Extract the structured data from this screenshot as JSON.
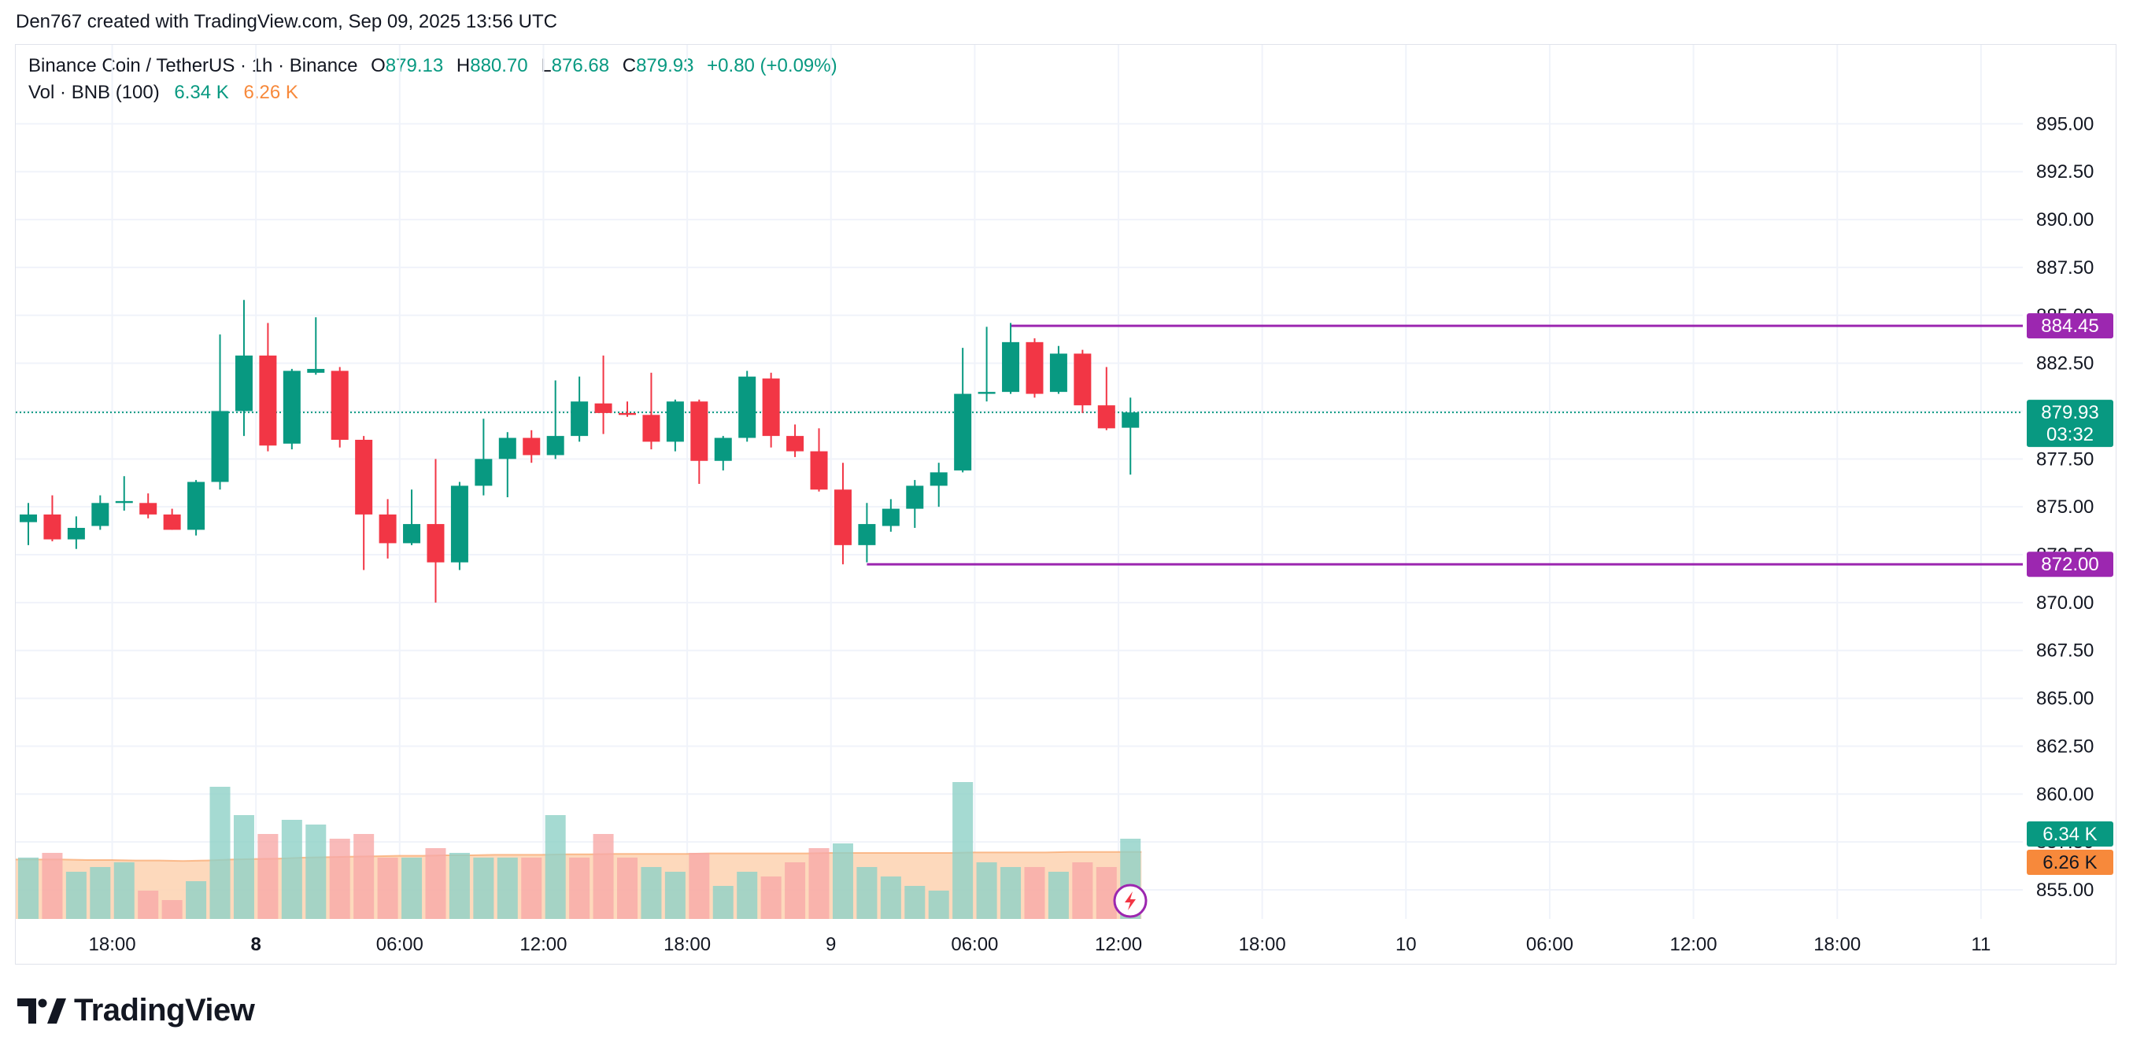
{
  "caption": "Den767 created with TradingView.com, Sep 09, 2025 13:56 UTC",
  "legend": {
    "symbol": "Binance Coin / TetherUS · 1h · Binance",
    "o_label": "O",
    "o_value": "879.13",
    "h_label": "H",
    "h_value": "880.70",
    "l_label": "L",
    "l_value": "876.68",
    "c_label": "C",
    "c_value": "879.93",
    "change": "+0.80 (+0.09%)",
    "vol_label": "Vol · BNB (100)",
    "vol_value": "6.34 K",
    "vol_ma_value": "6.26 K"
  },
  "price_badges": {
    "last_price": "879.93",
    "countdown": "03:32",
    "resistance": "884.45",
    "support": "872.00",
    "vol_badge": "6.34 K",
    "vol_ma_badge": "6.26 K"
  },
  "logo": {
    "wordmark": "TradingView"
  },
  "colors": {
    "up": "#089981",
    "down": "#f23645",
    "up_volume": "#8fd1c7",
    "down_volume": "#f7a9a7",
    "volume_ma_fill": "#fdd2b0",
    "volume_ma_line": "#f7893b",
    "level_line": "#9c27b0",
    "grid": "#f0f3fa",
    "text": "#131722"
  },
  "chart_data": {
    "type": "candlestick",
    "title": "Binance Coin / TetherUS · 1h · Binance",
    "y_axis": {
      "ticks": [
        "855.00",
        "857.50",
        "860.00",
        "862.50",
        "865.00",
        "867.50",
        "870.00",
        "872.50",
        "875.00",
        "877.50",
        "880.00",
        "882.50",
        "885.00",
        "887.50",
        "890.00",
        "892.50",
        "895.00"
      ],
      "ylim": [
        854.3,
        896.7
      ],
      "position": "right"
    },
    "x_axis": {
      "ticks": [
        {
          "label": "18:00",
          "bar": 3.5,
          "bold": false
        },
        {
          "label": "8",
          "bar": 9.5,
          "bold": true
        },
        {
          "label": "06:00",
          "bar": 15.5,
          "bold": false
        },
        {
          "label": "12:00",
          "bar": 21.5,
          "bold": false
        },
        {
          "label": "18:00",
          "bar": 27.5,
          "bold": false
        },
        {
          "label": "9",
          "bar": 33.5,
          "bold": false
        },
        {
          "label": "06:00",
          "bar": 39.5,
          "bold": false
        },
        {
          "label": "12:00",
          "bar": 45.5,
          "bold": false
        },
        {
          "label": "18:00",
          "bar": 51.5,
          "bold": false
        },
        {
          "label": "10",
          "bar": 57.5,
          "bold": false
        },
        {
          "label": "06:00",
          "bar": 63.5,
          "bold": false
        },
        {
          "label": "12:00",
          "bar": 69.5,
          "bold": false
        },
        {
          "label": "18:00",
          "bar": 75.5,
          "bold": false
        },
        {
          "label": "11",
          "bar": 81.5,
          "bold": false
        }
      ]
    },
    "candles": [
      {
        "o": 874.2,
        "h": 875.2,
        "l": 873.0,
        "c": 874.6
      },
      {
        "o": 874.6,
        "h": 875.6,
        "l": 873.2,
        "c": 873.3
      },
      {
        "o": 873.3,
        "h": 874.5,
        "l": 872.8,
        "c": 873.9
      },
      {
        "o": 874.0,
        "h": 875.6,
        "l": 873.8,
        "c": 875.2
      },
      {
        "o": 875.2,
        "h": 876.6,
        "l": 874.8,
        "c": 875.3
      },
      {
        "o": 875.2,
        "h": 875.7,
        "l": 874.4,
        "c": 874.6
      },
      {
        "o": 874.6,
        "h": 874.9,
        "l": 873.8,
        "c": 873.8
      },
      {
        "o": 873.8,
        "h": 876.4,
        "l": 873.5,
        "c": 876.3
      },
      {
        "o": 876.3,
        "h": 884.0,
        "l": 875.9,
        "c": 880.0
      },
      {
        "o": 880.0,
        "h": 885.8,
        "l": 878.7,
        "c": 882.9
      },
      {
        "o": 882.9,
        "h": 884.6,
        "l": 877.9,
        "c": 878.2
      },
      {
        "o": 878.3,
        "h": 882.2,
        "l": 878.0,
        "c": 882.1
      },
      {
        "o": 882.0,
        "h": 884.9,
        "l": 881.9,
        "c": 882.2
      },
      {
        "o": 882.1,
        "h": 882.3,
        "l": 878.1,
        "c": 878.5
      },
      {
        "o": 878.5,
        "h": 878.7,
        "l": 871.7,
        "c": 874.6
      },
      {
        "o": 874.6,
        "h": 875.4,
        "l": 872.3,
        "c": 873.1
      },
      {
        "o": 873.1,
        "h": 875.9,
        "l": 873.0,
        "c": 874.1
      },
      {
        "o": 874.1,
        "h": 877.5,
        "l": 870.0,
        "c": 872.1
      },
      {
        "o": 872.1,
        "h": 876.3,
        "l": 871.7,
        "c": 876.1
      },
      {
        "o": 876.1,
        "h": 879.6,
        "l": 875.6,
        "c": 877.5
      },
      {
        "o": 877.5,
        "h": 878.9,
        "l": 875.5,
        "c": 878.6
      },
      {
        "o": 878.6,
        "h": 879.0,
        "l": 877.3,
        "c": 877.7
      },
      {
        "o": 877.7,
        "h": 881.6,
        "l": 877.5,
        "c": 878.7
      },
      {
        "o": 878.7,
        "h": 881.8,
        "l": 878.4,
        "c": 880.5
      },
      {
        "o": 880.4,
        "h": 882.9,
        "l": 878.8,
        "c": 879.9
      },
      {
        "o": 879.9,
        "h": 880.5,
        "l": 879.7,
        "c": 879.8
      },
      {
        "o": 879.8,
        "h": 882.0,
        "l": 878.0,
        "c": 878.4
      },
      {
        "o": 878.4,
        "h": 880.6,
        "l": 877.9,
        "c": 880.5
      },
      {
        "o": 880.5,
        "h": 880.6,
        "l": 876.2,
        "c": 877.4
      },
      {
        "o": 877.4,
        "h": 878.7,
        "l": 876.9,
        "c": 878.6
      },
      {
        "o": 878.6,
        "h": 882.1,
        "l": 878.4,
        "c": 881.8
      },
      {
        "o": 881.7,
        "h": 882.0,
        "l": 878.1,
        "c": 878.7
      },
      {
        "o": 878.7,
        "h": 879.3,
        "l": 877.6,
        "c": 877.9
      },
      {
        "o": 877.9,
        "h": 879.1,
        "l": 875.8,
        "c": 875.9
      },
      {
        "o": 875.9,
        "h": 877.3,
        "l": 872.0,
        "c": 873.0
      },
      {
        "o": 873.0,
        "h": 875.2,
        "l": 872.1,
        "c": 874.1
      },
      {
        "o": 874.0,
        "h": 875.4,
        "l": 873.7,
        "c": 874.9
      },
      {
        "o": 874.9,
        "h": 876.4,
        "l": 873.9,
        "c": 876.1
      },
      {
        "o": 876.1,
        "h": 877.3,
        "l": 875.0,
        "c": 876.8
      },
      {
        "o": 876.9,
        "h": 883.3,
        "l": 876.8,
        "c": 880.9
      },
      {
        "o": 880.9,
        "h": 884.4,
        "l": 880.5,
        "c": 881.0
      },
      {
        "o": 881.0,
        "h": 884.6,
        "l": 880.9,
        "c": 883.6
      },
      {
        "o": 883.6,
        "h": 883.8,
        "l": 880.7,
        "c": 880.9
      },
      {
        "o": 881.0,
        "h": 883.4,
        "l": 880.9,
        "c": 883.0
      },
      {
        "o": 883.0,
        "h": 883.2,
        "l": 879.9,
        "c": 880.3
      },
      {
        "o": 880.3,
        "h": 882.3,
        "l": 879.0,
        "c": 879.1
      },
      {
        "o": 879.13,
        "h": 880.7,
        "l": 876.68,
        "c": 879.93
      }
    ],
    "volume": {
      "ylim": [
        0,
        100
      ],
      "values": [
        13,
        14,
        10,
        11,
        12,
        6,
        4,
        8,
        28,
        22,
        18,
        21,
        20,
        17,
        18,
        13,
        13,
        15,
        14,
        13,
        13,
        13,
        22,
        13,
        18,
        13,
        11,
        10,
        14,
        7,
        10,
        9,
        12,
        15,
        16,
        11,
        9,
        7,
        6,
        29,
        12,
        11,
        11,
        10,
        12,
        11,
        17
      ],
      "directions": [
        "up",
        "down",
        "up",
        "up",
        "up",
        "down",
        "down",
        "up",
        "up",
        "up",
        "down",
        "up",
        "up",
        "down",
        "down",
        "down",
        "up",
        "down",
        "up",
        "up",
        "up",
        "down",
        "up",
        "down",
        "down",
        "down",
        "up",
        "up",
        "down",
        "up",
        "up",
        "down",
        "down",
        "down",
        "up",
        "up",
        "up",
        "up",
        "up",
        "up",
        "up",
        "up",
        "down",
        "up",
        "down",
        "down",
        "up"
      ],
      "ma_values": [
        12.6,
        12.6,
        12.5,
        12.5,
        12.4,
        12.4,
        12.3,
        12.4,
        12.6,
        12.7,
        12.8,
        13.0,
        13.1,
        13.2,
        13.3,
        13.4,
        13.4,
        13.5,
        13.5,
        13.6,
        13.6,
        13.6,
        13.7,
        13.7,
        13.8,
        13.8,
        13.8,
        13.8,
        13.9,
        13.9,
        13.9,
        13.9,
        13.9,
        14.0,
        14.0,
        14.0,
        14.0,
        14.0,
        14.0,
        14.1,
        14.1,
        14.1,
        14.1,
        14.2,
        14.2,
        14.2,
        14.2
      ]
    },
    "levels": [
      {
        "price": 884.45,
        "from_bar": 41,
        "label": "884.45"
      },
      {
        "price": 872.0,
        "from_bar": 35,
        "label": "872.00"
      }
    ],
    "last_price": 879.93
  }
}
